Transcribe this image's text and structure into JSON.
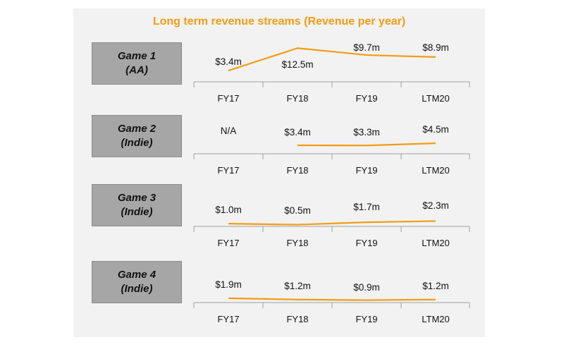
{
  "title": "Long term revenue streams (Revenue per year)",
  "colors": {
    "line": "#f39c12",
    "axis": "#a0a0a0",
    "box": "#a6a6a6",
    "panel": "#f2f2f2"
  },
  "chart_data": [
    {
      "type": "line",
      "name_line1": "Game 1",
      "name_line2": "(AA)",
      "categories": [
        "FY17",
        "FY18",
        "FY19",
        "LTM20"
      ],
      "values": [
        3.4,
        12.5,
        9.7,
        8.9
      ],
      "labels": [
        "$3.4m",
        "$12.5m",
        "$9.7m",
        "$8.9m"
      ],
      "unit": "$m"
    },
    {
      "type": "line",
      "name_line1": "Game 2",
      "name_line2": "(Indie)",
      "categories": [
        "FY17",
        "FY18",
        "FY19",
        "LTM20"
      ],
      "values": [
        null,
        3.4,
        3.3,
        4.5
      ],
      "labels": [
        "N/A",
        "$3.4m",
        "$3.3m",
        "$4.5m"
      ],
      "unit": "$m"
    },
    {
      "type": "line",
      "name_line1": "Game 3",
      "name_line2": "(Indie)",
      "categories": [
        "FY17",
        "FY18",
        "FY19",
        "LTM20"
      ],
      "values": [
        1.0,
        0.5,
        1.7,
        2.3
      ],
      "labels": [
        "$1.0m",
        "$0.5m",
        "$1.7m",
        "$2.3m"
      ],
      "unit": "$m"
    },
    {
      "type": "line",
      "name_line1": "Game 4",
      "name_line2": "(Indie)",
      "categories": [
        "FY17",
        "FY18",
        "FY19",
        "LTM20"
      ],
      "values": [
        1.9,
        1.2,
        0.9,
        1.2
      ],
      "labels": [
        "$1.9m",
        "$1.2m",
        "$0.9m",
        "$1.2m"
      ],
      "unit": "$m"
    }
  ]
}
